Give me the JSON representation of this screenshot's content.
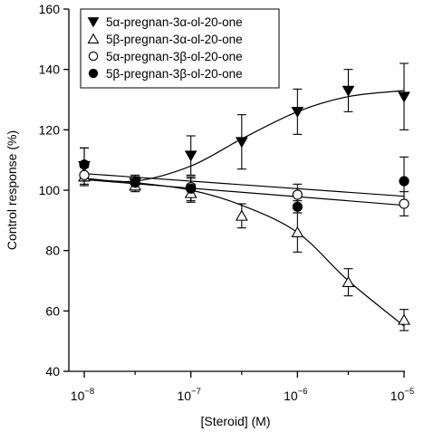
{
  "chart_data": {
    "type": "scatter",
    "title": "",
    "xlabel": "[Steroid] (M)",
    "ylabel": "Control response (%)",
    "xscale": "log",
    "xlim": [
      1e-08,
      1e-05
    ],
    "ylim": [
      40,
      160
    ],
    "y_ticks": [
      40,
      60,
      80,
      100,
      120,
      140,
      160
    ],
    "x_ticks": [
      {
        "value": 1e-08,
        "base": "10",
        "exp": "−8"
      },
      {
        "value": 1e-07,
        "base": "10",
        "exp": "−7"
      },
      {
        "value": 1e-06,
        "base": "10",
        "exp": "−6"
      },
      {
        "value": 1e-05,
        "base": "10",
        "exp": "−5"
      }
    ],
    "x_minor_ticks": [
      3e-08,
      3e-07,
      3e-06
    ],
    "legend_position": "top-left",
    "grid": false,
    "series": [
      {
        "name": "5α-pregnan-3α-ol-20-one",
        "marker": "triangle-down-filled",
        "x": [
          1e-08,
          3e-08,
          1e-07,
          3e-07,
          1e-06,
          3e-06,
          1e-05
        ],
        "y": [
          108,
          102.5,
          111.5,
          116,
          126,
          133,
          131
        ],
        "err": [
          6,
          2.5,
          6.5,
          9,
          7.5,
          7,
          11
        ],
        "fit": [
          [
            1e-08,
            104
          ],
          [
            3e-08,
            103
          ],
          [
            1e-07,
            108
          ],
          [
            3e-07,
            117
          ],
          [
            1e-06,
            126
          ],
          [
            3e-06,
            131
          ],
          [
            1e-05,
            133
          ]
        ]
      },
      {
        "name": "5β-pregnan-3α-ol-20-one",
        "marker": "triangle-up-open",
        "x": [
          1e-08,
          3e-08,
          1e-07,
          3e-07,
          1e-06,
          3e-06,
          1e-05
        ],
        "y": [
          104.5,
          101.5,
          99,
          91.5,
          86,
          69.5,
          57
        ],
        "err": [
          3,
          2,
          3,
          4,
          6.5,
          4.5,
          3.5
        ],
        "fit": [
          [
            1e-08,
            103.5
          ],
          [
            3e-08,
            102.5
          ],
          [
            1e-07,
            100
          ],
          [
            3e-07,
            95
          ],
          [
            1e-06,
            86
          ],
          [
            3e-06,
            70
          ],
          [
            1e-05,
            55
          ]
        ]
      },
      {
        "name": "5α-pregnan-3β-ol-20-one",
        "marker": "circle-open",
        "x": [
          1e-08,
          3e-08,
          1e-07,
          1e-06,
          1e-05
        ],
        "y": [
          105,
          102.5,
          101,
          98.5,
          95.5
        ],
        "err": [
          3.5,
          2,
          3,
          3.5,
          4
        ],
        "fit": [
          [
            1e-08,
            105.5
          ],
          [
            1e-05,
            98
          ]
        ]
      },
      {
        "name": "5β-pregnan-3β-ol-20-one",
        "marker": "circle-filled",
        "x": [
          1e-08,
          3e-08,
          1e-07,
          1e-06,
          1e-05
        ],
        "y": [
          108.5,
          102.5,
          100.5,
          94.5,
          103
        ],
        "err": [
          5.5,
          2,
          4,
          2,
          8
        ],
        "fit": [
          [
            1e-08,
            103.5
          ],
          [
            1e-05,
            95
          ]
        ]
      }
    ]
  }
}
